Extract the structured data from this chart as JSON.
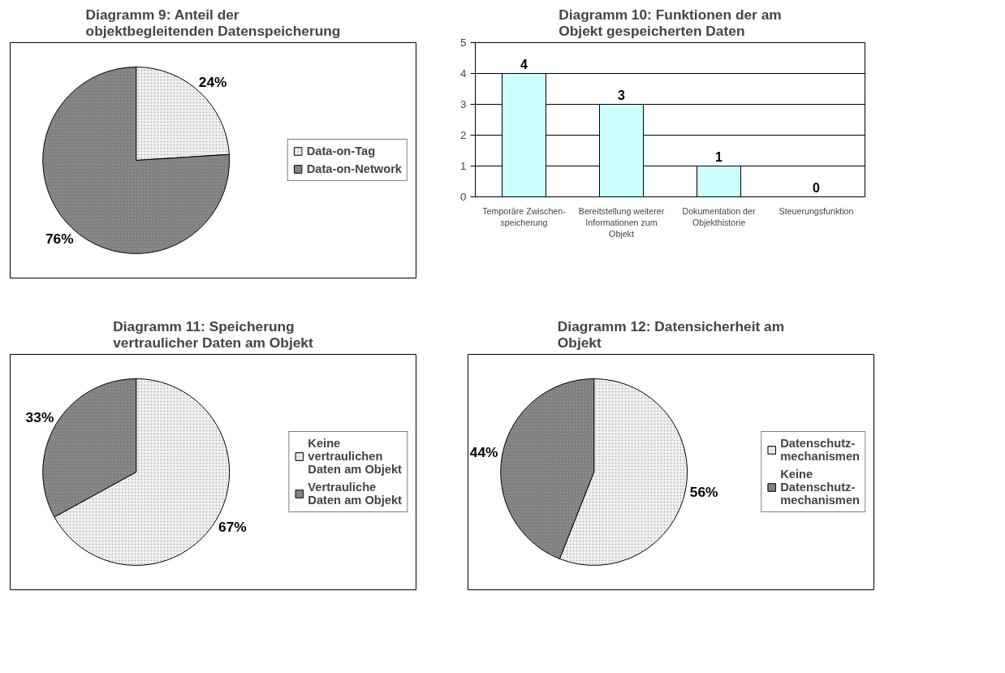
{
  "chart_data": [
    {
      "type": "pie",
      "title": "Diagramm 9: Anteil der objektbegleitenden Datenspeicherung",
      "categories": [
        "Data-on-Tag",
        "Data-on-Network"
      ],
      "values": [
        24,
        76
      ],
      "colors": [
        "#f2f2f2",
        "#808080"
      ],
      "value_labels": [
        "24%",
        "76%"
      ],
      "legend": "right"
    },
    {
      "type": "bar",
      "title": "Diagramm 10: Funktionen der am Objekt gespeicherten Daten",
      "categories": [
        "Temporäre Zwischen-speicherung",
        "Bereitstellung weiterer Informationen zum Objekt",
        "Dokumentation der Objekthistorie",
        "Steuerungsfunktion"
      ],
      "values": [
        4,
        3,
        1,
        0
      ],
      "color": "#ccffff",
      "ylim": [
        0,
        5
      ],
      "yticks": [
        0,
        1,
        2,
        3,
        4,
        5
      ],
      "grid": "y",
      "data_labels": true
    },
    {
      "type": "pie",
      "title": "Diagramm 11: Speicherung vertraulicher Daten am Objekt",
      "categories": [
        "Keine vertraulichen Daten am Objekt",
        "Vertrauliche Daten am Objekt"
      ],
      "values": [
        67,
        33
      ],
      "colors": [
        "#f2f2f2",
        "#808080"
      ],
      "value_labels": [
        "67%",
        "33%"
      ],
      "legend": "right"
    },
    {
      "type": "pie",
      "title": "Diagramm 12: Datensicherheit am Objekt",
      "categories": [
        "Datenschutz-mechanismen",
        "Keine Datenschutz-mechanismen"
      ],
      "values": [
        56,
        44
      ],
      "colors": [
        "#f2f2f2",
        "#808080"
      ],
      "value_labels": [
        "56%",
        "44%"
      ],
      "legend": "right"
    }
  ]
}
